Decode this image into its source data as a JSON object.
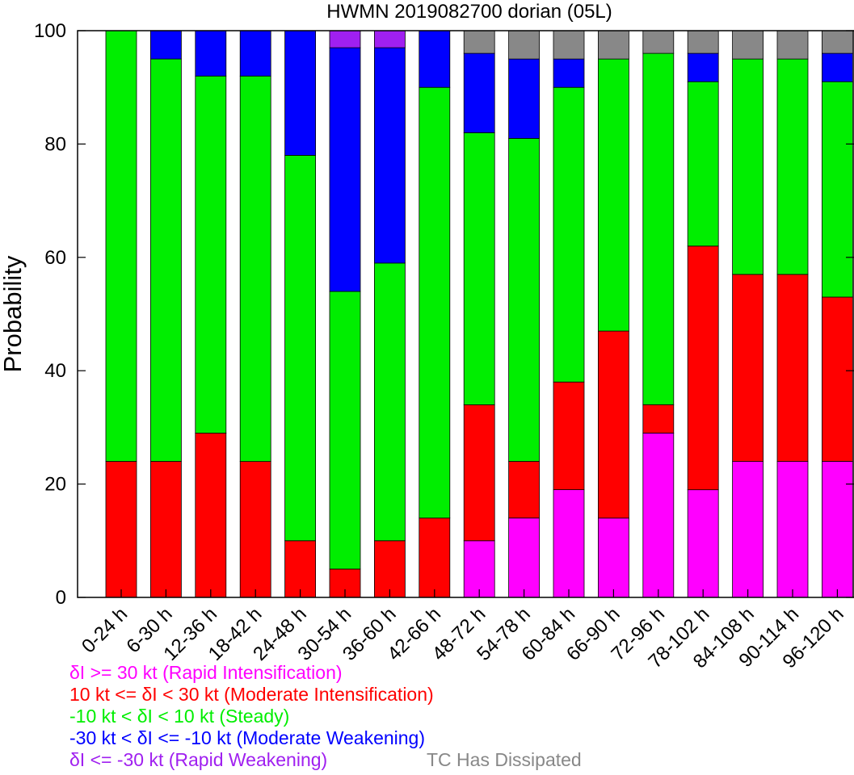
{
  "chart_data": {
    "type": "bar",
    "stacked": true,
    "title": "HWMN 2019082700 dorian (05L)",
    "ylabel": "Probability",
    "xlabel": "",
    "ylim": [
      0,
      100
    ],
    "yticks": [
      "0",
      "20",
      "40",
      "60",
      "80",
      "100"
    ],
    "grid": false,
    "categories": [
      "0-24 h",
      "6-30 h",
      "12-36 h",
      "18-42 h",
      "24-48 h",
      "30-54 h",
      "36-60 h",
      "42-66 h",
      "48-72 h",
      "54-78 h",
      "60-84 h",
      "66-90 h",
      "72-96 h",
      "78-102 h",
      "84-108 h",
      "90-114 h",
      "96-120 h"
    ],
    "series": [
      {
        "name": "δI >= 30 kt (Rapid Intensification)",
        "color": "#ff00ff",
        "values": [
          0,
          0,
          0,
          0,
          0,
          0,
          0,
          0,
          10,
          14,
          19,
          14,
          29,
          19,
          24,
          24,
          24
        ]
      },
      {
        "name": "10 kt <= δI < 30 kt (Moderate Intensification)",
        "color": "#ff0000",
        "values": [
          24,
          24,
          29,
          24,
          10,
          5,
          10,
          14,
          24,
          10,
          19,
          33,
          5,
          43,
          33,
          33,
          29
        ]
      },
      {
        "name": "-10 kt < δI < 10 kt (Steady)",
        "color": "#00ee00",
        "values": [
          76,
          71,
          63,
          68,
          68,
          49,
          49,
          76,
          48,
          57,
          52,
          48,
          62,
          29,
          38,
          38,
          38
        ]
      },
      {
        "name": "-30 kt < δI <= -10 kt (Moderate Weakening)",
        "color": "#0000ff",
        "values": [
          0,
          5,
          8,
          8,
          22,
          43,
          38,
          10,
          14,
          14,
          5,
          0,
          0,
          5,
          0,
          0,
          5
        ]
      },
      {
        "name": "δI <= -30 kt (Rapid Weakening)",
        "color": "#a020f0",
        "values": [
          0,
          0,
          0,
          0,
          0,
          3,
          3,
          0,
          0,
          0,
          0,
          0,
          0,
          0,
          0,
          0,
          0
        ]
      },
      {
        "name": "TC Has Dissipated",
        "color": "#888888",
        "values": [
          0,
          0,
          0,
          0,
          0,
          0,
          0,
          0,
          4,
          5,
          5,
          5,
          4,
          4,
          5,
          5,
          4
        ]
      }
    ],
    "legend_position": "bottom-left"
  },
  "legend": [
    {
      "text": "δI >= 30 kt (Rapid Intensification)",
      "color": "#ff00ff"
    },
    {
      "text": "10 kt <= δI < 30 kt (Moderate Intensification)",
      "color": "#ff0000"
    },
    {
      "text": "-10 kt < δI < 10 kt (Steady)",
      "color": "#00ee00"
    },
    {
      "text": "-30 kt < δI <= -10 kt (Moderate Weakening)",
      "color": "#0000ff"
    },
    {
      "text": "δI <= -30 kt (Rapid Weakening)",
      "color": "#a020f0"
    },
    {
      "text": "TC Has Dissipated",
      "color": "#888888"
    }
  ]
}
